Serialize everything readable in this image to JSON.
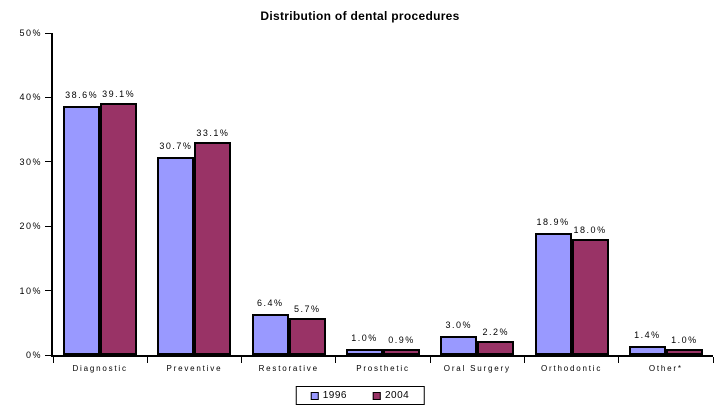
{
  "page": {
    "background_color": "#FFFFFF",
    "text_color": "#000000"
  },
  "chart_data": {
    "type": "bar",
    "title": "Distribution of dental procedures",
    "categories": [
      "Diagnostic",
      "Preventive",
      "Restorative",
      "Prosthetic",
      "Oral Surgery",
      "Orthodontic",
      "Other*"
    ],
    "series": [
      {
        "name": "1996",
        "color": "#9999FF",
        "values": [
          38.6,
          30.7,
          6.4,
          1.0,
          3.0,
          18.9,
          1.4
        ]
      },
      {
        "name": "2004",
        "color": "#993366",
        "values": [
          39.1,
          33.1,
          5.7,
          0.9,
          2.2,
          18.0,
          1.0
        ]
      }
    ],
    "xlabel": "",
    "ylabel": "",
    "ylim": [
      0,
      50
    ],
    "ytick_step": 10,
    "ytick_suffix": "%",
    "data_label_suffix": "%",
    "data_label_decimals": 1,
    "legend_position": "bottom",
    "grid": false,
    "bar_border_color": "#000000",
    "axis_color": "#000000"
  }
}
